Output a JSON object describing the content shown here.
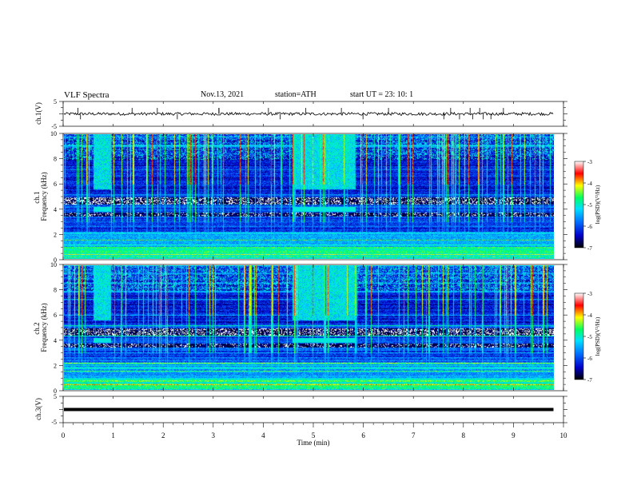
{
  "header": {
    "title": "VLF  Spectra",
    "date": "Nov.13, 2021",
    "station": "station=ATH",
    "start": "start  UT  =    23: 10: 1"
  },
  "chart_data": [
    {
      "type": "line",
      "name": "ch1-waveform",
      "ylabel": "ch.1(V)",
      "ylim": [
        -5,
        5
      ],
      "yticks": [
        "5",
        "-5"
      ],
      "xlim": [
        0,
        10
      ],
      "signal_range_V": [
        -0.6,
        0.6
      ],
      "line_color": "#000000",
      "x_end_min": 9.8
    },
    {
      "type": "heatmap",
      "name": "ch1-spectrogram",
      "ylabel": "ch.1\nFrequency  (kHz)",
      "ylim": [
        0,
        10
      ],
      "yticks": [
        "0",
        "2",
        "4",
        "6",
        "8",
        "10"
      ],
      "xlim": [
        0,
        10
      ],
      "x_end_min": 9.8,
      "bursts_min": [
        [
          0.6,
          0.95
        ],
        [
          4.65,
          5.95
        ]
      ],
      "burst_band_kHz": [
        3.8,
        4.2
      ],
      "colorbar": {
        "label": "log(PSD)(V²/Hz)",
        "min": -7,
        "max": -3,
        "ticks": [
          "-3",
          "-4",
          "-5",
          "-6",
          "-7"
        ]
      }
    },
    {
      "type": "heatmap",
      "name": "ch2-spectrogram",
      "ylabel": "ch.2\nFrequency  (kHz)",
      "ylim": [
        0,
        10
      ],
      "yticks": [
        "0",
        "2",
        "4",
        "6",
        "8",
        "10"
      ],
      "xlim": [
        0,
        10
      ],
      "x_end_min": 9.8,
      "bursts_min": [
        [
          0.6,
          0.95
        ],
        [
          4.65,
          5.95
        ]
      ],
      "burst_band_kHz": [
        3.8,
        4.2
      ],
      "colorbar": {
        "label": "log(PSD)(V²/Hz)",
        "min": -7,
        "max": -3,
        "ticks": [
          "-3",
          "-4",
          "-5",
          "-6",
          "-7"
        ]
      }
    },
    {
      "type": "line",
      "name": "ch3-waveform",
      "ylabel": "ch.3(V)",
      "ylim": [
        -5,
        5
      ],
      "yticks": [
        "5",
        "-5"
      ],
      "xlim": [
        0,
        10
      ],
      "level_V": 0,
      "line_color": "#000000",
      "x_end_min": 9.8
    }
  ],
  "xaxis": {
    "label": "Time  (min)",
    "ticks": [
      "0",
      "1",
      "2",
      "3",
      "4",
      "5",
      "6",
      "7",
      "8",
      "9",
      "10"
    ]
  },
  "colorscale": [
    "#000000",
    "#0000c8",
    "#0070ff",
    "#00e0ff",
    "#00ff60",
    "#ffff00",
    "#ff0000",
    "#ffffff"
  ]
}
